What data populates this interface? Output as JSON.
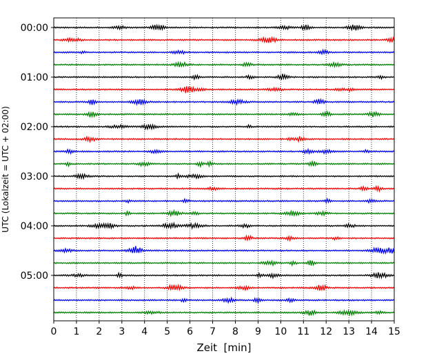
{
  "chart_data": {
    "type": "line",
    "title": "",
    "xlabel": "Zeit  [min]",
    "ylabel": "UTC (Lokalzeit = UTC + 02:00)",
    "xlim": [
      0,
      15
    ],
    "x_ticks": [
      "0",
      "1",
      "2",
      "3",
      "4",
      "5",
      "6",
      "7",
      "8",
      "9",
      "10",
      "11",
      "12",
      "13",
      "14",
      "15"
    ],
    "y_ticks": [
      "00:00",
      "01:00",
      "02:00",
      "03:00",
      "04:00",
      "05:00"
    ],
    "grid": "vertical dotted",
    "legend": "none",
    "traces_per_hour": 4,
    "minutes_per_trace": 15,
    "trace_colors": [
      "#000000",
      "#ff0000",
      "#0000ff",
      "#008000"
    ],
    "traces": [
      {
        "start": "00:00",
        "color": "#000000"
      },
      {
        "start": "00:15",
        "color": "#ff0000"
      },
      {
        "start": "00:30",
        "color": "#0000ff"
      },
      {
        "start": "00:45",
        "color": "#008000"
      },
      {
        "start": "01:00",
        "color": "#000000"
      },
      {
        "start": "01:15",
        "color": "#ff0000"
      },
      {
        "start": "01:30",
        "color": "#0000ff"
      },
      {
        "start": "01:45",
        "color": "#008000"
      },
      {
        "start": "02:00",
        "color": "#000000"
      },
      {
        "start": "02:15",
        "color": "#ff0000"
      },
      {
        "start": "02:30",
        "color": "#0000ff"
      },
      {
        "start": "02:45",
        "color": "#008000"
      },
      {
        "start": "03:00",
        "color": "#000000"
      },
      {
        "start": "03:15",
        "color": "#ff0000"
      },
      {
        "start": "03:30",
        "color": "#0000ff"
      },
      {
        "start": "03:45",
        "color": "#008000"
      },
      {
        "start": "04:00",
        "color": "#000000"
      },
      {
        "start": "04:15",
        "color": "#ff0000"
      },
      {
        "start": "04:30",
        "color": "#0000ff"
      },
      {
        "start": "04:45",
        "color": "#008000"
      },
      {
        "start": "05:00",
        "color": "#000000"
      },
      {
        "start": "05:15",
        "color": "#ff0000"
      },
      {
        "start": "05:30",
        "color": "#0000ff"
      },
      {
        "start": "05:45",
        "color": "#008000"
      }
    ]
  }
}
